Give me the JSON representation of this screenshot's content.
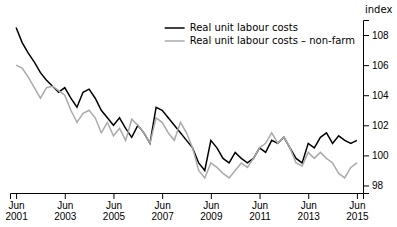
{
  "chart_data": {
    "type": "line",
    "ylabel": "index",
    "categories": [
      "Jun\n2001",
      null,
      null,
      null,
      null,
      null,
      null,
      null,
      "Jun\n2003",
      null,
      null,
      null,
      null,
      null,
      null,
      null,
      "Jun\n2005",
      null,
      null,
      null,
      null,
      null,
      null,
      null,
      "Jun\n2007",
      null,
      null,
      null,
      null,
      null,
      null,
      null,
      "Jun\n2009",
      null,
      null,
      null,
      null,
      null,
      null,
      null,
      "Jun\n2011",
      null,
      null,
      null,
      null,
      null,
      null,
      null,
      "Jun\n2013",
      null,
      null,
      null,
      null,
      null,
      null,
      null,
      "Jun\n2015"
    ],
    "series": [
      {
        "name": "Real unit labour costs",
        "color": "#000000",
        "values": [
          108.5,
          107.5,
          106.8,
          106.2,
          105.5,
          105.0,
          104.6,
          104.2,
          104.5,
          103.8,
          103.2,
          104.2,
          104.4,
          103.8,
          103.0,
          102.5,
          102.0,
          102.5,
          101.8,
          101.2,
          102.0,
          101.5,
          100.8,
          103.2,
          103.0,
          102.5,
          102.0,
          101.5,
          101.0,
          100.5,
          99.5,
          99.0,
          101.0,
          100.5,
          99.8,
          99.5,
          100.2,
          99.8,
          99.5,
          99.8,
          100.5,
          100.2,
          101.0,
          100.8,
          101.2,
          100.5,
          99.8,
          99.5,
          100.8,
          100.5,
          101.2,
          101.5,
          100.8,
          101.3,
          101.0,
          100.8,
          101.0
        ]
      },
      {
        "name": "Real unit labour costs – non-farm",
        "color": "#aaaaaa",
        "values": [
          106.0,
          105.8,
          105.2,
          104.5,
          103.8,
          104.5,
          104.6,
          104.3,
          104.0,
          103.0,
          102.2,
          102.8,
          103.0,
          102.5,
          101.5,
          102.2,
          101.3,
          101.8,
          101.0,
          102.4,
          102.0,
          101.5,
          100.8,
          102.5,
          102.2,
          101.5,
          101.0,
          102.2,
          101.5,
          100.5,
          99.0,
          98.5,
          99.5,
          99.2,
          98.8,
          98.5,
          99.0,
          99.5,
          99.2,
          99.8,
          100.5,
          100.8,
          101.5,
          100.8,
          101.2,
          100.5,
          99.5,
          99.3,
          100.2,
          99.8,
          100.2,
          99.8,
          99.5,
          98.8,
          98.5,
          99.2,
          99.5
        ]
      }
    ],
    "ylim": [
      97.5,
      109
    ],
    "yticks": [
      98,
      100,
      102,
      104,
      106,
      108
    ],
    "grid": false,
    "legend": "upper right"
  }
}
